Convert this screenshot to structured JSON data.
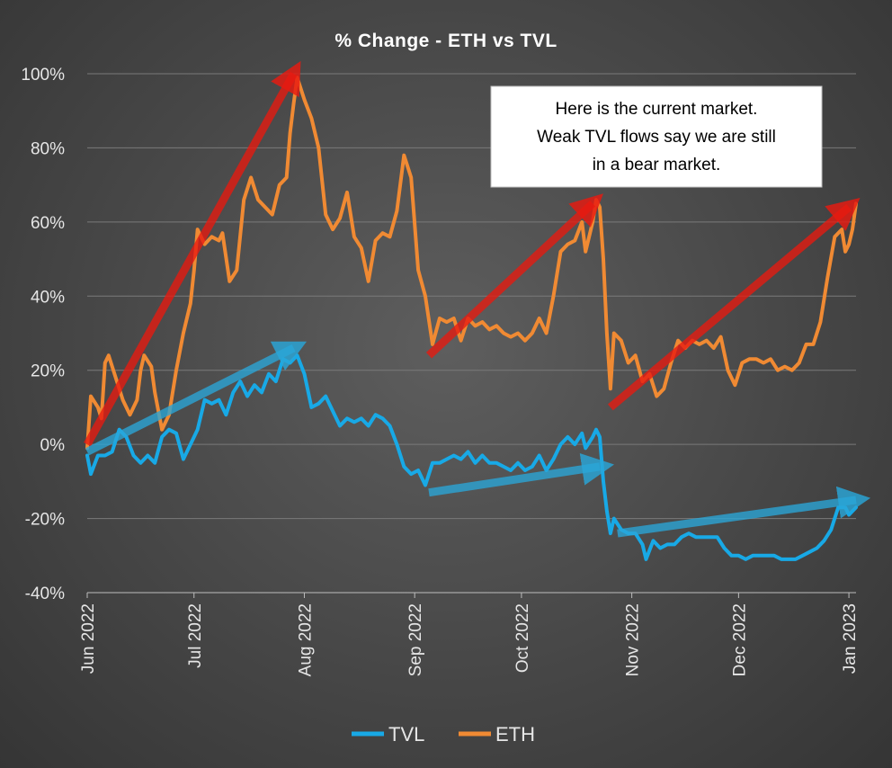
{
  "chart_data": {
    "type": "line",
    "title": "% Change - ETH vs TVL",
    "xlabel": "",
    "ylabel": "",
    "ylim": [
      -40,
      100
    ],
    "yticks": [
      100,
      80,
      60,
      40,
      20,
      0,
      -20,
      -40
    ],
    "ytick_labels": [
      "100%",
      "80%",
      "60%",
      "40%",
      "20%",
      "0%",
      "-20%",
      "-40%"
    ],
    "xlim": [
      "2022-06-01",
      "2023-01-03"
    ],
    "xticks": [
      {
        "date": "2022-06-01",
        "label": "Jun 2022"
      },
      {
        "date": "2022-07-01",
        "label": "Jul 2022"
      },
      {
        "date": "2022-08-01",
        "label": "Aug 2022"
      },
      {
        "date": "2022-09-01",
        "label": "Sep 2022"
      },
      {
        "date": "2022-10-01",
        "label": "Oct 2022"
      },
      {
        "date": "2022-11-01",
        "label": "Nov 2022"
      },
      {
        "date": "2022-12-01",
        "label": "Dec 2022"
      },
      {
        "date": "2023-01-01",
        "label": "Jan 2023"
      }
    ],
    "grid": "horizontal",
    "legend": "bottom",
    "series": [
      {
        "name": "TVL",
        "color": "#18a9e6",
        "points": [
          [
            "2022-06-01",
            -3
          ],
          [
            "2022-06-02",
            -8
          ],
          [
            "2022-06-04",
            -3
          ],
          [
            "2022-06-06",
            -3
          ],
          [
            "2022-06-08",
            -2
          ],
          [
            "2022-06-10",
            4
          ],
          [
            "2022-06-12",
            2
          ],
          [
            "2022-06-14",
            -3
          ],
          [
            "2022-06-16",
            -5
          ],
          [
            "2022-06-18",
            -3
          ],
          [
            "2022-06-20",
            -5
          ],
          [
            "2022-06-22",
            2
          ],
          [
            "2022-06-24",
            4
          ],
          [
            "2022-06-26",
            3
          ],
          [
            "2022-06-28",
            -4
          ],
          [
            "2022-07-01",
            2
          ],
          [
            "2022-07-02",
            4
          ],
          [
            "2022-07-04",
            12
          ],
          [
            "2022-07-06",
            11
          ],
          [
            "2022-07-08",
            12
          ],
          [
            "2022-07-10",
            8
          ],
          [
            "2022-07-12",
            14
          ],
          [
            "2022-07-14",
            17
          ],
          [
            "2022-07-16",
            13
          ],
          [
            "2022-07-18",
            16
          ],
          [
            "2022-07-20",
            14
          ],
          [
            "2022-07-22",
            19
          ],
          [
            "2022-07-24",
            17
          ],
          [
            "2022-07-26",
            23
          ],
          [
            "2022-07-28",
            22
          ],
          [
            "2022-07-30",
            24
          ],
          [
            "2022-08-01",
            19
          ],
          [
            "2022-08-03",
            10
          ],
          [
            "2022-08-05",
            11
          ],
          [
            "2022-08-07",
            13
          ],
          [
            "2022-08-09",
            9
          ],
          [
            "2022-08-11",
            5
          ],
          [
            "2022-08-13",
            7
          ],
          [
            "2022-08-15",
            6
          ],
          [
            "2022-08-17",
            7
          ],
          [
            "2022-08-19",
            5
          ],
          [
            "2022-08-21",
            8
          ],
          [
            "2022-08-23",
            7
          ],
          [
            "2022-08-25",
            5
          ],
          [
            "2022-08-27",
            0
          ],
          [
            "2022-08-29",
            -6
          ],
          [
            "2022-08-31",
            -8
          ],
          [
            "2022-09-02",
            -7
          ],
          [
            "2022-09-04",
            -11
          ],
          [
            "2022-09-06",
            -5
          ],
          [
            "2022-09-08",
            -5
          ],
          [
            "2022-09-10",
            -4
          ],
          [
            "2022-09-12",
            -3
          ],
          [
            "2022-09-14",
            -4
          ],
          [
            "2022-09-16",
            -2
          ],
          [
            "2022-09-18",
            -5
          ],
          [
            "2022-09-20",
            -3
          ],
          [
            "2022-09-22",
            -5
          ],
          [
            "2022-09-24",
            -5
          ],
          [
            "2022-09-26",
            -6
          ],
          [
            "2022-09-28",
            -7
          ],
          [
            "2022-09-30",
            -5
          ],
          [
            "2022-10-02",
            -7
          ],
          [
            "2022-10-04",
            -6
          ],
          [
            "2022-10-06",
            -3
          ],
          [
            "2022-10-08",
            -7
          ],
          [
            "2022-10-10",
            -4
          ],
          [
            "2022-10-12",
            0
          ],
          [
            "2022-10-14",
            2
          ],
          [
            "2022-10-16",
            0
          ],
          [
            "2022-10-18",
            3
          ],
          [
            "2022-10-19",
            -1
          ],
          [
            "2022-10-21",
            2
          ],
          [
            "2022-10-22",
            4
          ],
          [
            "2022-10-23",
            2
          ],
          [
            "2022-10-24",
            -10
          ],
          [
            "2022-10-25",
            -18
          ],
          [
            "2022-10-26",
            -24
          ],
          [
            "2022-10-27",
            -20
          ],
          [
            "2022-10-29",
            -23
          ],
          [
            "2022-10-31",
            -24
          ],
          [
            "2022-11-02",
            -24
          ],
          [
            "2022-11-04",
            -27
          ],
          [
            "2022-11-05",
            -31
          ],
          [
            "2022-11-07",
            -26
          ],
          [
            "2022-11-09",
            -28
          ],
          [
            "2022-11-11",
            -27
          ],
          [
            "2022-11-13",
            -27
          ],
          [
            "2022-11-15",
            -25
          ],
          [
            "2022-11-17",
            -24
          ],
          [
            "2022-11-19",
            -25
          ],
          [
            "2022-11-21",
            -25
          ],
          [
            "2022-11-23",
            -25
          ],
          [
            "2022-11-25",
            -25
          ],
          [
            "2022-11-27",
            -28
          ],
          [
            "2022-11-29",
            -30
          ],
          [
            "2022-12-01",
            -30
          ],
          [
            "2022-12-03",
            -31
          ],
          [
            "2022-12-05",
            -30
          ],
          [
            "2022-12-07",
            -30
          ],
          [
            "2022-12-09",
            -30
          ],
          [
            "2022-12-11",
            -30
          ],
          [
            "2022-12-13",
            -31
          ],
          [
            "2022-12-15",
            -31
          ],
          [
            "2022-12-17",
            -31
          ],
          [
            "2022-12-19",
            -30
          ],
          [
            "2022-12-21",
            -29
          ],
          [
            "2022-12-23",
            -28
          ],
          [
            "2022-12-25",
            -26
          ],
          [
            "2022-12-27",
            -23
          ],
          [
            "2022-12-29",
            -17
          ],
          [
            "2022-12-31",
            -17
          ],
          [
            "2023-01-01",
            -19
          ],
          [
            "2023-01-03",
            -17
          ]
        ]
      },
      {
        "name": "ETH",
        "color": "#f08a33",
        "points": [
          [
            "2022-06-01",
            -1
          ],
          [
            "2022-06-02",
            13
          ],
          [
            "2022-06-04",
            10
          ],
          [
            "2022-06-05",
            7
          ],
          [
            "2022-06-06",
            22
          ],
          [
            "2022-06-07",
            24
          ],
          [
            "2022-06-09",
            18
          ],
          [
            "2022-06-11",
            12
          ],
          [
            "2022-06-13",
            8
          ],
          [
            "2022-06-15",
            12
          ],
          [
            "2022-06-16",
            20
          ],
          [
            "2022-06-17",
            24
          ],
          [
            "2022-06-19",
            21
          ],
          [
            "2022-06-20",
            14
          ],
          [
            "2022-06-22",
            4
          ],
          [
            "2022-06-24",
            8
          ],
          [
            "2022-06-26",
            20
          ],
          [
            "2022-06-28",
            30
          ],
          [
            "2022-06-30",
            38
          ],
          [
            "2022-07-01",
            47
          ],
          [
            "2022-07-02",
            58
          ],
          [
            "2022-07-04",
            54
          ],
          [
            "2022-07-06",
            56
          ],
          [
            "2022-07-08",
            55
          ],
          [
            "2022-07-09",
            57
          ],
          [
            "2022-07-11",
            44
          ],
          [
            "2022-07-13",
            47
          ],
          [
            "2022-07-15",
            66
          ],
          [
            "2022-07-17",
            72
          ],
          [
            "2022-07-19",
            66
          ],
          [
            "2022-07-21",
            64
          ],
          [
            "2022-07-23",
            62
          ],
          [
            "2022-07-25",
            70
          ],
          [
            "2022-07-27",
            72
          ],
          [
            "2022-07-28",
            84
          ],
          [
            "2022-07-29",
            92
          ],
          [
            "2022-07-30",
            99
          ],
          [
            "2022-08-01",
            93
          ],
          [
            "2022-08-03",
            88
          ],
          [
            "2022-08-05",
            80
          ],
          [
            "2022-08-07",
            62
          ],
          [
            "2022-08-09",
            58
          ],
          [
            "2022-08-11",
            61
          ],
          [
            "2022-08-13",
            68
          ],
          [
            "2022-08-15",
            56
          ],
          [
            "2022-08-17",
            53
          ],
          [
            "2022-08-19",
            44
          ],
          [
            "2022-08-21",
            55
          ],
          [
            "2022-08-23",
            57
          ],
          [
            "2022-08-25",
            56
          ],
          [
            "2022-08-27",
            63
          ],
          [
            "2022-08-29",
            78
          ],
          [
            "2022-08-31",
            72
          ],
          [
            "2022-09-02",
            47
          ],
          [
            "2022-09-04",
            40
          ],
          [
            "2022-09-06",
            27
          ],
          [
            "2022-09-08",
            34
          ],
          [
            "2022-09-10",
            33
          ],
          [
            "2022-09-12",
            34
          ],
          [
            "2022-09-14",
            28
          ],
          [
            "2022-09-16",
            34
          ],
          [
            "2022-09-18",
            32
          ],
          [
            "2022-09-20",
            33
          ],
          [
            "2022-09-22",
            31
          ],
          [
            "2022-09-24",
            32
          ],
          [
            "2022-09-26",
            30
          ],
          [
            "2022-09-28",
            29
          ],
          [
            "2022-09-30",
            30
          ],
          [
            "2022-10-02",
            28
          ],
          [
            "2022-10-04",
            30
          ],
          [
            "2022-10-06",
            34
          ],
          [
            "2022-10-08",
            30
          ],
          [
            "2022-10-10",
            40
          ],
          [
            "2022-10-12",
            52
          ],
          [
            "2022-10-14",
            54
          ],
          [
            "2022-10-16",
            55
          ],
          [
            "2022-10-18",
            60
          ],
          [
            "2022-10-19",
            52
          ],
          [
            "2022-10-21",
            60
          ],
          [
            "2022-10-22",
            66
          ],
          [
            "2022-10-23",
            64
          ],
          [
            "2022-10-24",
            50
          ],
          [
            "2022-10-25",
            30
          ],
          [
            "2022-10-26",
            15
          ],
          [
            "2022-10-27",
            30
          ],
          [
            "2022-10-29",
            28
          ],
          [
            "2022-10-31",
            22
          ],
          [
            "2022-11-02",
            24
          ],
          [
            "2022-11-04",
            17
          ],
          [
            "2022-11-06",
            19
          ],
          [
            "2022-11-08",
            13
          ],
          [
            "2022-11-10",
            15
          ],
          [
            "2022-11-12",
            22
          ],
          [
            "2022-11-14",
            28
          ],
          [
            "2022-11-16",
            26
          ],
          [
            "2022-11-18",
            28
          ],
          [
            "2022-11-20",
            27
          ],
          [
            "2022-11-22",
            28
          ],
          [
            "2022-11-24",
            26
          ],
          [
            "2022-11-26",
            29
          ],
          [
            "2022-11-28",
            20
          ],
          [
            "2022-11-30",
            16
          ],
          [
            "2022-12-02",
            22
          ],
          [
            "2022-12-04",
            23
          ],
          [
            "2022-12-06",
            23
          ],
          [
            "2022-12-08",
            22
          ],
          [
            "2022-12-10",
            23
          ],
          [
            "2022-12-12",
            20
          ],
          [
            "2022-12-14",
            21
          ],
          [
            "2022-12-16",
            20
          ],
          [
            "2022-12-18",
            22
          ],
          [
            "2022-12-20",
            27
          ],
          [
            "2022-12-22",
            27
          ],
          [
            "2022-12-24",
            33
          ],
          [
            "2022-12-26",
            45
          ],
          [
            "2022-12-28",
            56
          ],
          [
            "2022-12-30",
            58
          ],
          [
            "2022-12-31",
            52
          ],
          [
            "2023-01-01",
            54
          ],
          [
            "2023-01-02",
            58
          ],
          [
            "2023-01-03",
            65
          ]
        ]
      }
    ],
    "annotations": [
      {
        "type": "arrow",
        "color": "#e81a10",
        "from": [
          "2022-06-01",
          0
        ],
        "to": [
          "2022-07-29",
          100
        ]
      },
      {
        "type": "arrow",
        "color": "#e81a10",
        "from": [
          "2022-09-05",
          24
        ],
        "to": [
          "2022-10-21",
          65
        ]
      },
      {
        "type": "arrow",
        "color": "#e81a10",
        "from": [
          "2022-10-26",
          10
        ],
        "to": [
          "2023-01-01",
          64
        ]
      },
      {
        "type": "arrow",
        "color": "#2aa6d8",
        "from": [
          "2022-06-01",
          -2
        ],
        "to": [
          "2022-07-29",
          26
        ]
      },
      {
        "type": "arrow",
        "color": "#2aa6d8",
        "from": [
          "2022-09-05",
          -13
        ],
        "to": [
          "2022-10-23",
          -6
        ]
      },
      {
        "type": "arrow",
        "color": "#2aa6d8",
        "from": [
          "2022-10-28",
          -24
        ],
        "to": [
          "2023-01-03",
          -15
        ]
      }
    ],
    "note": {
      "lines": [
        "Here is the current market.",
        "Weak TVL flows say we are still",
        "in a bear market."
      ]
    }
  }
}
